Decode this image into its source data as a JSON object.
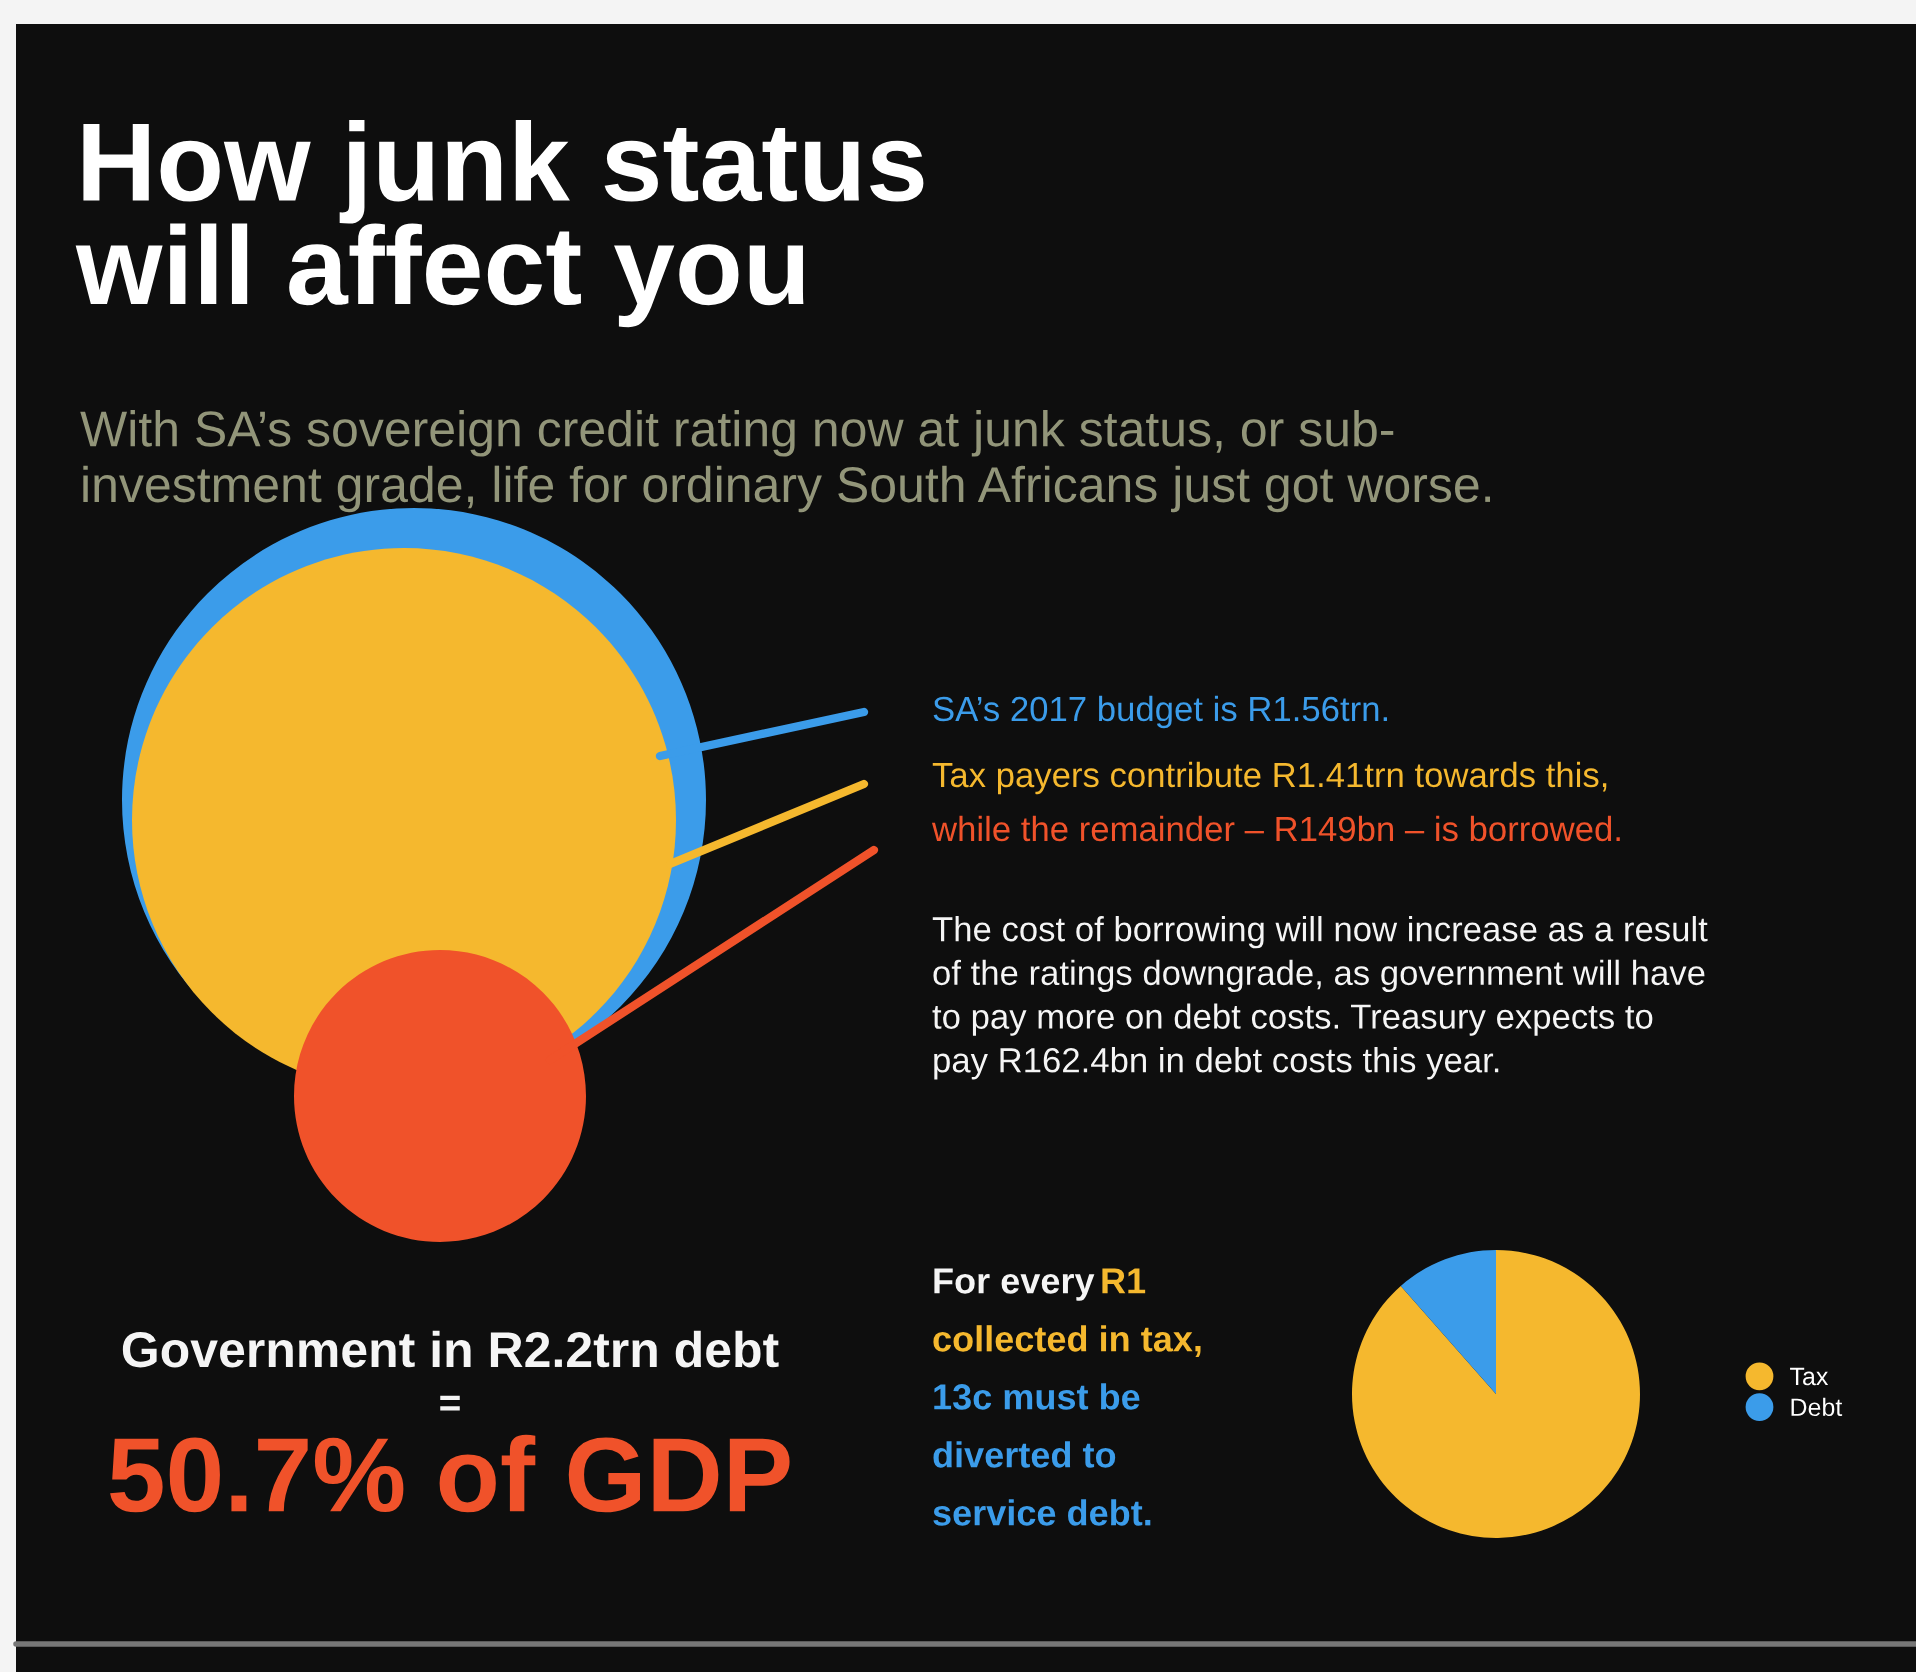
{
  "chart_data": {
    "type": "pie",
    "title": "How junk status\nwill affect you",
    "subtitle": "With SA’s sovereign credit rating now at junk status, or sub-\ninvestment grade, life for ordinary South Africans just got worse.",
    "categories": [
      "Tax",
      "Debt"
    ],
    "values": [
      88.5,
      11.5
    ],
    "colors": [
      "#f5b82e",
      "#3b9cea"
    ],
    "legend": "right",
    "annotations": [
      "SA’s 2017 budget is R1.56trn.",
      "Tax payers contribute R1.41trn towards this,",
      "while the remainder – R149bn – is borrowed.",
      "The cost of borrowing will now increase as a result\nof the ratings downgrade, as government will have\nto pay more on debt costs. Treasury expects to\npay R162.4bn in debt costs this year.",
      "For every",
      "R1",
      "collected in tax,",
      "13c must be",
      "diverted to",
      "service debt.",
      "Government in R2.2trn debt",
      "=",
      "50.7% of GDP"
    ]
  }
}
